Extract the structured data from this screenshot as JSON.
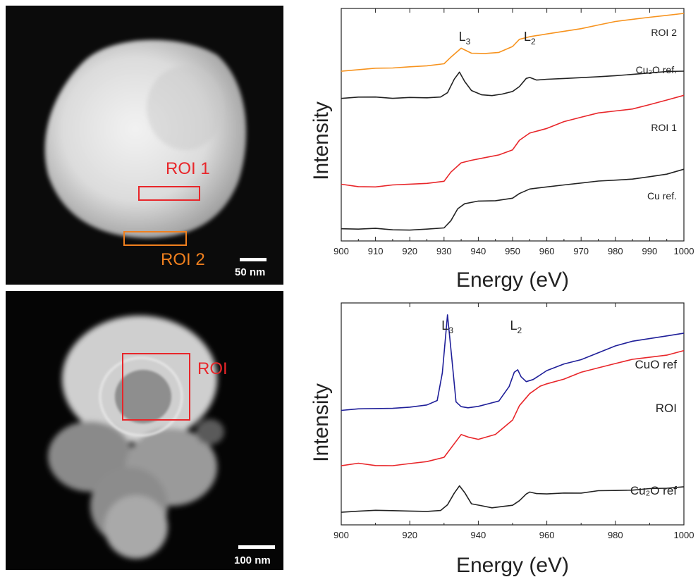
{
  "stem_top": {
    "rois": [
      {
        "label": "ROI 1",
        "color": "#e8262a"
      },
      {
        "label": "ROI 2",
        "color": "#f0801e"
      }
    ],
    "scale_bar": "50 nm"
  },
  "stem_bottom": {
    "rois": [
      {
        "label": "ROI",
        "color": "#e8262a"
      }
    ],
    "scale_bar": "100 nm"
  },
  "chart_data": [
    {
      "type": "line",
      "xlabel": "Energy (eV)",
      "ylabel": "Intensity",
      "xlim": [
        900,
        1000
      ],
      "xticks": [
        900,
        910,
        920,
        930,
        940,
        950,
        960,
        970,
        980,
        990,
        1000
      ],
      "peak_labels": [
        {
          "main": "L",
          "sub": "3",
          "x": 936
        },
        {
          "main": "L",
          "sub": "2",
          "x": 955
        }
      ],
      "series": [
        {
          "name": "ROI 2",
          "color": "#f7931e",
          "x": [
            900,
            905,
            910,
            915,
            920,
            925,
            930,
            932,
            935,
            938,
            942,
            946,
            950,
            952,
            955,
            960,
            965,
            970,
            975,
            980,
            985,
            990,
            995,
            1000
          ],
          "y": [
            0.78,
            0.785,
            0.79,
            0.79,
            0.795,
            0.8,
            0.81,
            0.84,
            0.88,
            0.86,
            0.86,
            0.865,
            0.89,
            0.92,
            0.93,
            0.94,
            0.95,
            0.96,
            0.975,
            0.99,
            1.0,
            1.01,
            1.02,
            1.03
          ]
        },
        {
          "name": "Cu₂O ref.",
          "color": "#222222",
          "x": [
            900,
            905,
            910,
            915,
            920,
            925,
            929,
            931,
            933,
            934.5,
            936,
            938,
            941,
            944,
            947,
            950,
            952,
            954,
            955,
            957,
            960,
            965,
            970,
            975,
            980,
            985,
            990,
            995,
            1000
          ],
          "y": [
            0.66,
            0.665,
            0.665,
            0.66,
            0.665,
            0.665,
            0.67,
            0.69,
            0.75,
            0.78,
            0.74,
            0.7,
            0.68,
            0.675,
            0.68,
            0.69,
            0.71,
            0.745,
            0.75,
            0.74,
            0.745,
            0.75,
            0.755,
            0.76,
            0.765,
            0.77,
            0.775,
            0.78,
            0.78
          ]
        },
        {
          "name": "ROI 1",
          "color": "#e8262a",
          "x": [
            900,
            905,
            910,
            915,
            920,
            925,
            930,
            932,
            935,
            938,
            942,
            946,
            950,
            952,
            955,
            960,
            965,
            970,
            975,
            980,
            985,
            990,
            995,
            1000
          ],
          "y": [
            0.29,
            0.28,
            0.28,
            0.29,
            0.295,
            0.3,
            0.31,
            0.35,
            0.39,
            0.4,
            0.41,
            0.42,
            0.44,
            0.48,
            0.51,
            0.53,
            0.56,
            0.58,
            0.6,
            0.61,
            0.62,
            0.64,
            0.66,
            0.68
          ]
        },
        {
          "name": "Cu ref.",
          "color": "#222222",
          "x": [
            900,
            905,
            910,
            915,
            920,
            925,
            930,
            932,
            934,
            936,
            940,
            945,
            950,
            952,
            955,
            960,
            965,
            970,
            975,
            980,
            985,
            990,
            995,
            1000
          ],
          "y": [
            0.1,
            0.1,
            0.105,
            0.1,
            0.1,
            0.105,
            0.11,
            0.14,
            0.19,
            0.21,
            0.22,
            0.22,
            0.23,
            0.25,
            0.27,
            0.28,
            0.29,
            0.3,
            0.31,
            0.315,
            0.32,
            0.33,
            0.34,
            0.36
          ]
        }
      ],
      "series_labels": [
        "ROI 2",
        "Cu₂O ref.",
        "ROI 1",
        "Cu ref."
      ]
    },
    {
      "type": "line",
      "xlabel": "Energy (eV)",
      "ylabel": "Intensity",
      "xlim": [
        900,
        1000
      ],
      "xticks": [
        900,
        920,
        940,
        960,
        980,
        1000
      ],
      "peak_labels": [
        {
          "main": "L",
          "sub": "3",
          "x": 931
        },
        {
          "main": "L",
          "sub": "2",
          "x": 951
        }
      ],
      "series": [
        {
          "name": "CuO ref",
          "color": "#1f1f99",
          "x": [
            900,
            905,
            910,
            915,
            920,
            925,
            928,
            929.5,
            931,
            932.3,
            933.5,
            935,
            937,
            940,
            943,
            946,
            949,
            950.5,
            951.5,
            952.5,
            954,
            956,
            960,
            965,
            970,
            975,
            980,
            985,
            990,
            995,
            1000
          ],
          "y": [
            0.54,
            0.545,
            0.545,
            0.545,
            0.55,
            0.56,
            0.58,
            0.7,
            0.95,
            0.76,
            0.58,
            0.56,
            0.555,
            0.56,
            0.57,
            0.58,
            0.64,
            0.7,
            0.71,
            0.68,
            0.66,
            0.67,
            0.71,
            0.74,
            0.76,
            0.79,
            0.82,
            0.84,
            0.85,
            0.86,
            0.87
          ]
        },
        {
          "name": "ROI",
          "color": "#e8262a",
          "x": [
            900,
            905,
            910,
            915,
            920,
            925,
            930,
            933,
            935,
            937,
            940,
            945,
            950,
            952,
            955,
            958,
            960,
            965,
            970,
            975,
            980,
            985,
            990,
            995,
            1000
          ],
          "y": [
            0.3,
            0.31,
            0.3,
            0.3,
            0.31,
            0.32,
            0.34,
            0.4,
            0.44,
            0.43,
            0.42,
            0.44,
            0.5,
            0.56,
            0.61,
            0.64,
            0.65,
            0.67,
            0.7,
            0.72,
            0.74,
            0.76,
            0.77,
            0.78,
            0.8
          ]
        },
        {
          "name": "Cu₂O ref",
          "color": "#222222",
          "x": [
            900,
            905,
            910,
            915,
            920,
            925,
            929,
            931,
            933,
            934.5,
            936,
            938,
            941,
            944,
            947,
            950,
            952,
            954,
            955,
            957,
            960,
            965,
            970,
            975,
            980,
            985,
            990,
            995,
            1000
          ],
          "y": [
            0.1,
            0.105,
            0.11,
            0.11,
            0.11,
            0.11,
            0.115,
            0.14,
            0.19,
            0.22,
            0.19,
            0.14,
            0.13,
            0.12,
            0.125,
            0.13,
            0.15,
            0.18,
            0.19,
            0.185,
            0.185,
            0.19,
            0.19,
            0.2,
            0.2,
            0.2,
            0.205,
            0.205,
            0.21
          ]
        }
      ],
      "series_labels": [
        "CuO ref",
        "ROI",
        "Cu₂O ref"
      ]
    }
  ]
}
